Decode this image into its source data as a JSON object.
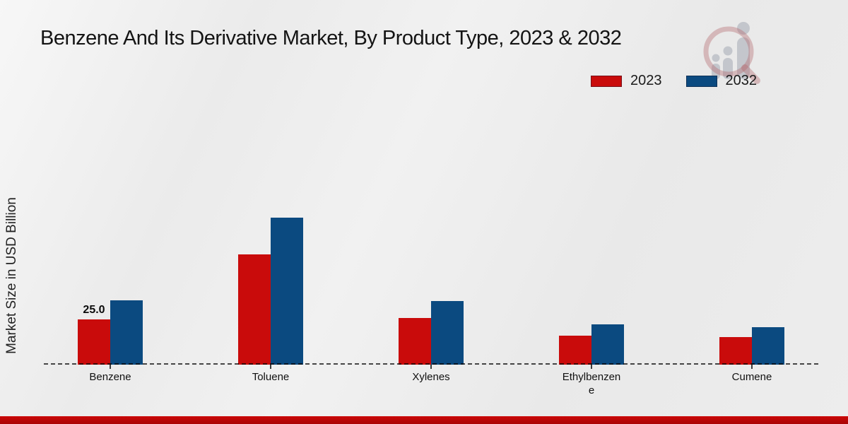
{
  "header": {
    "title": "Benzene And Its Derivative Market, By Product Type, 2023 & 2032"
  },
  "legend": {
    "items": [
      {
        "label": "2023",
        "color": "#c90b0b"
      },
      {
        "label": "2032",
        "color": "#0b4a80"
      }
    ]
  },
  "y_axis": {
    "label": "Market Size in USD Billion"
  },
  "chart_data": {
    "type": "bar",
    "title": "Benzene And Its Derivative Market, By Product Type, 2023 & 2032",
    "ylabel": "Market Size in USD Billion",
    "xlabel": "",
    "units": "USD Billion",
    "categories": [
      "Benzene",
      "Toluene",
      "Xylenes",
      "Ethylbenzene",
      "Cumene"
    ],
    "series": [
      {
        "name": "2023",
        "color": "#c90b0b",
        "values": [
          25.0,
          61.0,
          25.8,
          16.0,
          15.3
        ]
      },
      {
        "name": "2032",
        "color": "#0b4a80",
        "values": [
          35.5,
          81.3,
          35.2,
          22.2,
          20.8
        ]
      }
    ],
    "annotations": [
      {
        "series": "2023",
        "category": "Benzene",
        "text": "25.0"
      }
    ],
    "legend_position": "top-right",
    "grid": false,
    "y_axis_ticks_visible": false,
    "baseline_style": "dashed"
  },
  "footer": {
    "accent_color": "#bf0708"
  },
  "watermark": {
    "name": "market-research-future-logo"
  }
}
